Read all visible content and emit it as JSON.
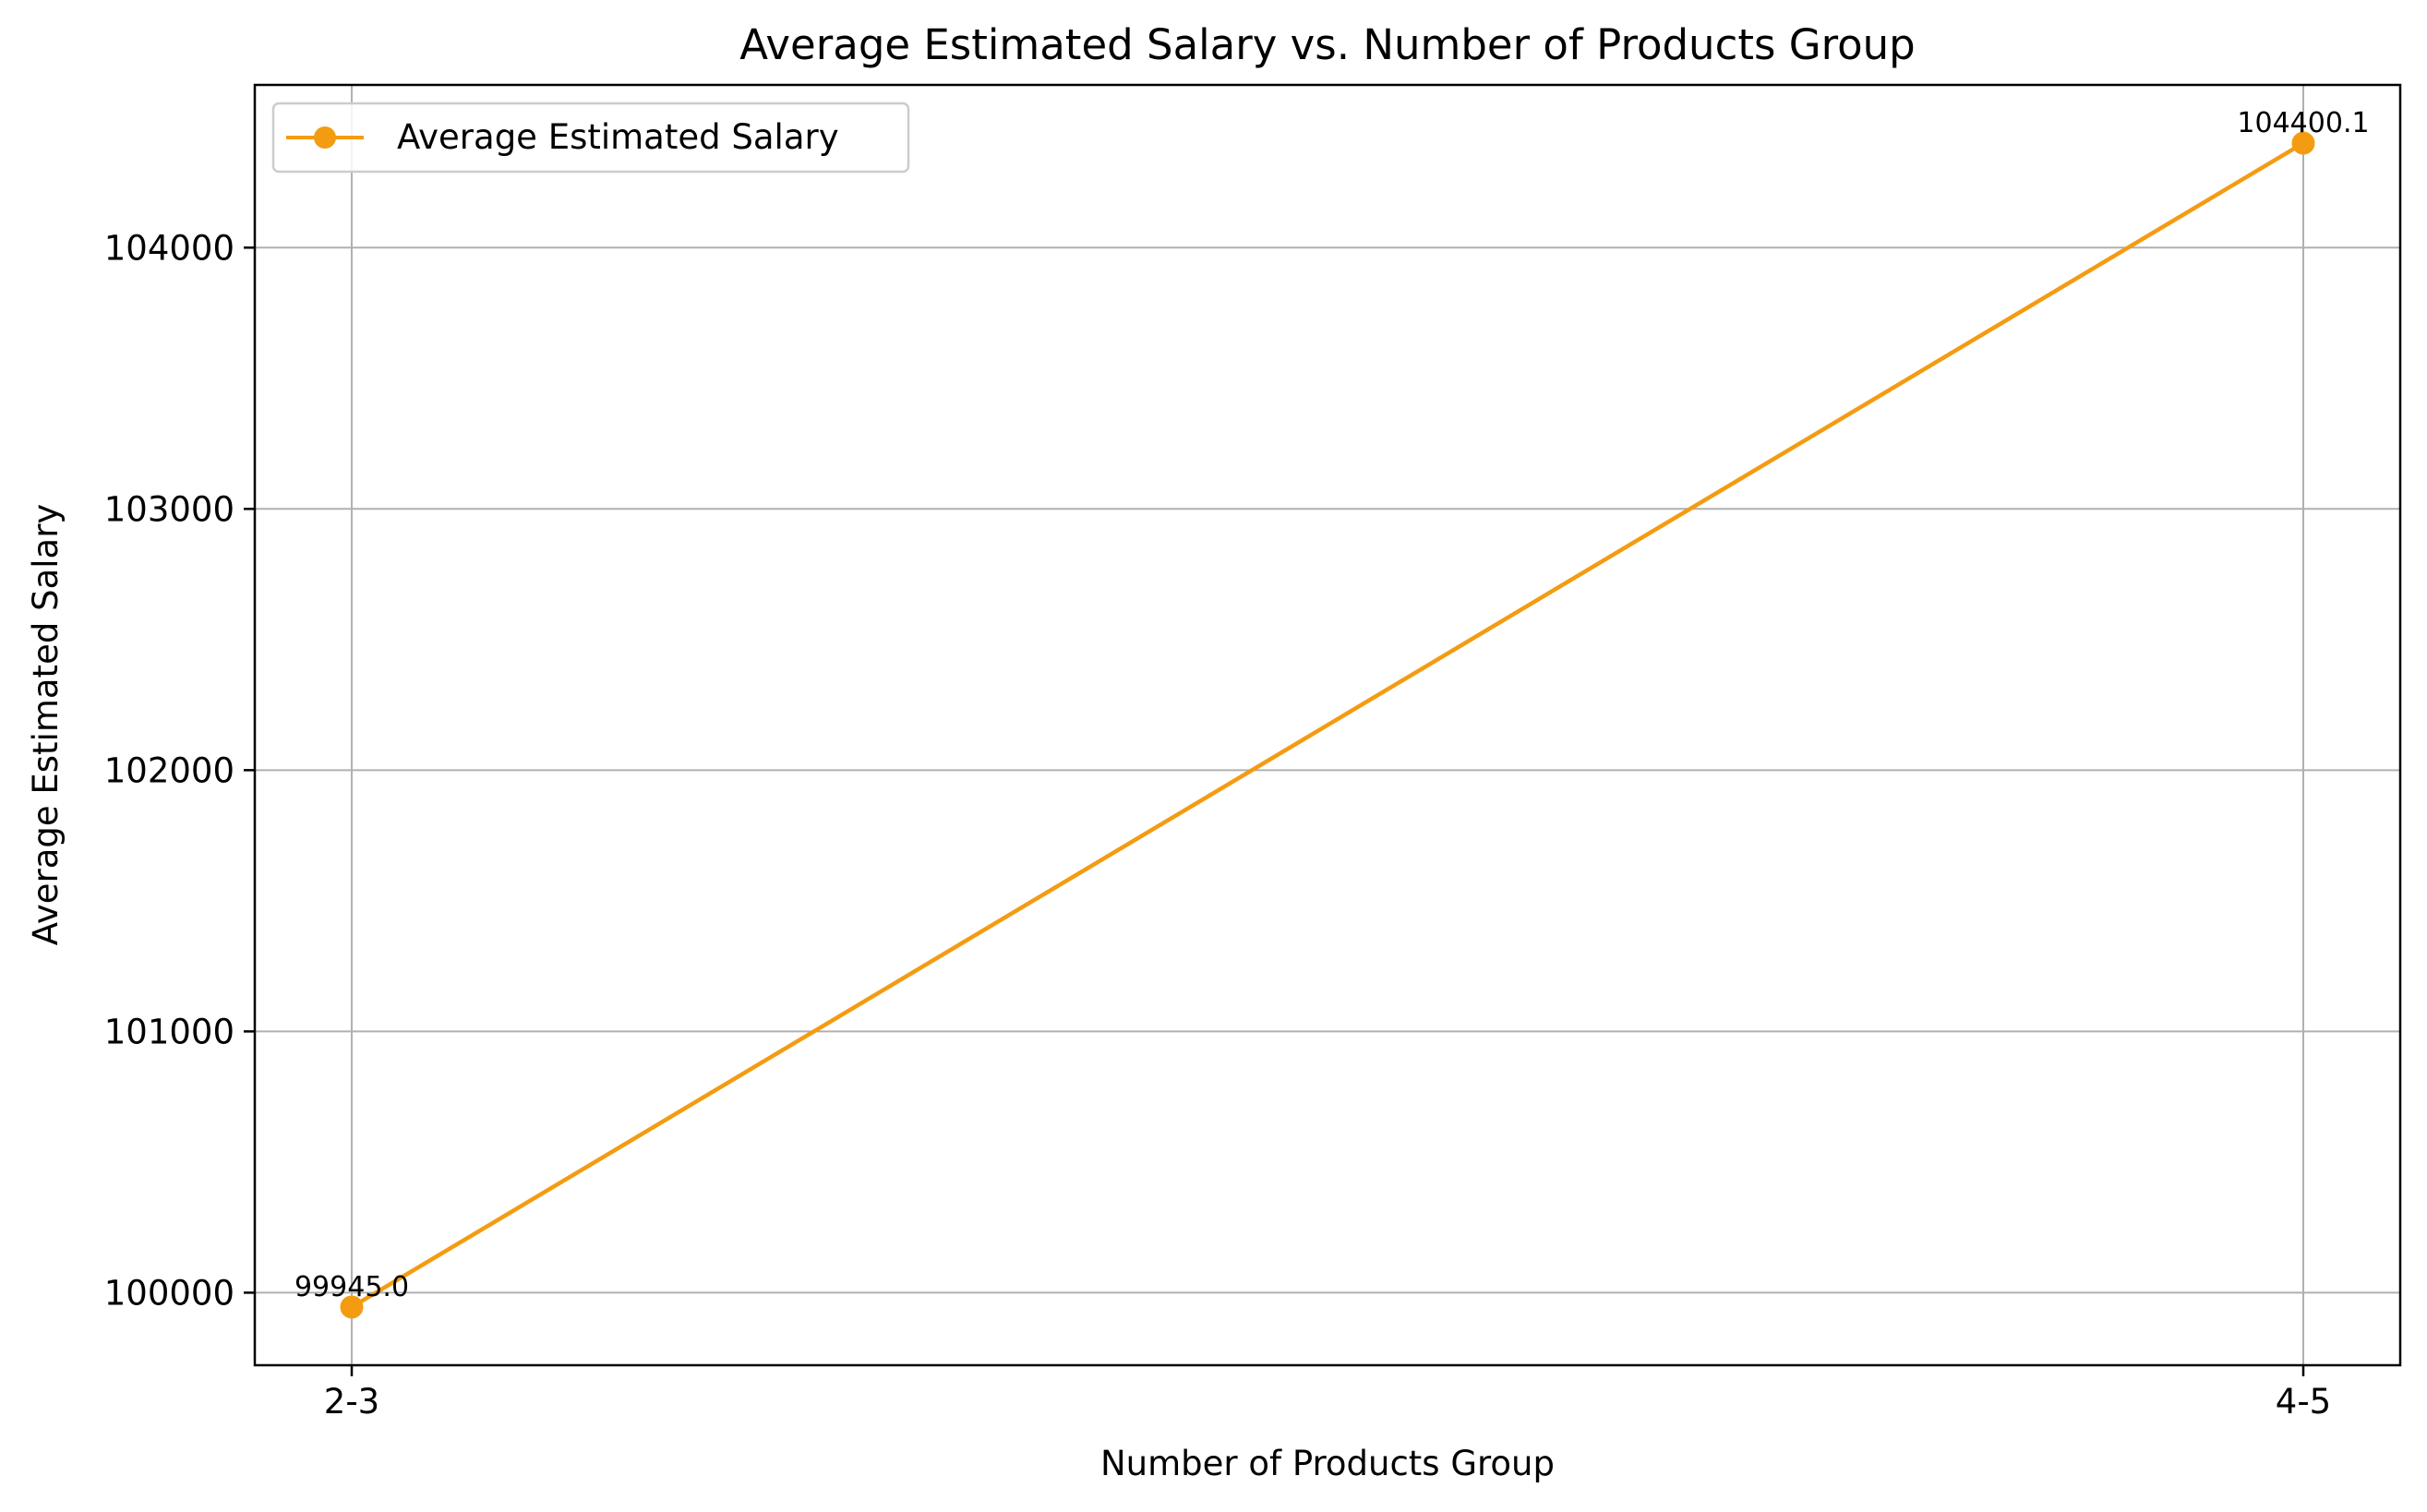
{
  "chart_data": {
    "type": "line",
    "title": "Average Estimated Salary vs. Number of Products Group",
    "xlabel": "Number of Products Group",
    "ylabel": "Average Estimated Salary",
    "categories": [
      "2-3",
      "4-5"
    ],
    "series": [
      {
        "name": "Average Estimated Salary",
        "values": [
          99945.0,
          104400.1
        ],
        "data_labels": [
          "99945.0",
          "104400.1"
        ],
        "color": "#f39c12"
      }
    ],
    "yticks": [
      100000,
      101000,
      102000,
      103000,
      104000
    ],
    "ytick_labels": [
      "100000",
      "101000",
      "102000",
      "103000",
      "104000"
    ],
    "ylim": [
      99722.3,
      104622.8
    ],
    "grid": true,
    "legend_position": "top-left",
    "colors": {
      "axis": "#000000",
      "grid": "#b0b0b0",
      "line": "#f39c12"
    }
  }
}
